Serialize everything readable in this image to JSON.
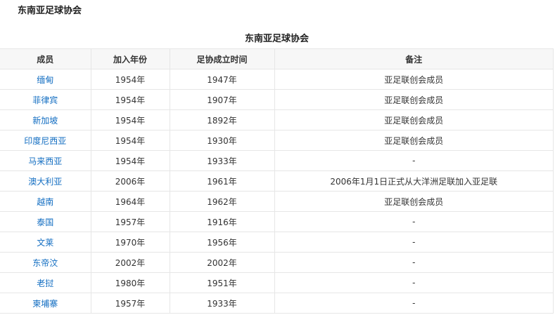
{
  "heading": "东南亚足球协会",
  "caption": "东南亚足球协会",
  "headers": [
    "成员",
    "加入年份",
    "足协成立时间",
    "备注"
  ],
  "rows": [
    [
      "缅甸",
      "1954年",
      "1947年",
      "亚足联创会成员"
    ],
    [
      "菲律宾",
      "1954年",
      "1907年",
      "亚足联创会成员"
    ],
    [
      "新加坡",
      "1954年",
      "1892年",
      "亚足联创会成员"
    ],
    [
      "印度尼西亚",
      "1954年",
      "1930年",
      "亚足联创会成员"
    ],
    [
      "马来西亚",
      "1954年",
      "1933年",
      "-"
    ],
    [
      "澳大利亚",
      "2006年",
      "1961年",
      "2006年1月1日正式从大洋洲足联加入亚足联"
    ],
    [
      "越南",
      "1964年",
      "1962年",
      "亚足联创会成员"
    ],
    [
      "泰国",
      "1957年",
      "1916年",
      "-"
    ],
    [
      "文莱",
      "1970年",
      "1956年",
      "-"
    ],
    [
      "东帝汶",
      "2002年",
      "2002年",
      "-"
    ],
    [
      "老挝",
      "1980年",
      "1951年",
      "-"
    ],
    [
      "柬埔寨",
      "1957年",
      "1933年",
      "-"
    ]
  ],
  "colors": {
    "link": "#136ec2",
    "header_bg": "#f7f7f7",
    "border": "#e6e6e6"
  }
}
